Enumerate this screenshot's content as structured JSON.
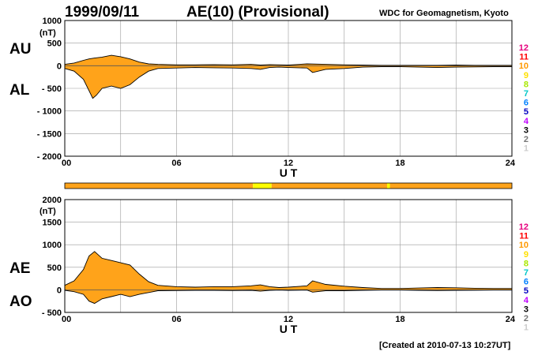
{
  "header": {
    "date": "1999/09/11",
    "title": "AE(10) (Provisional)",
    "source": "WDC for Geomagnetism, Kyoto"
  },
  "footer": {
    "created": "[Created at 2010-07-13 10:27UT]"
  },
  "colors": {
    "fill": "#ffa31a",
    "grid": "#9a9a9a",
    "bar_main": "#ffa31a",
    "bar_highlight": "#ffff00"
  },
  "legend": [
    {
      "label": "12",
      "color": "#e6007e"
    },
    {
      "label": "11",
      "color": "#ff0000"
    },
    {
      "label": "10",
      "color": "#ff9900"
    },
    {
      "label": "9",
      "color": "#ffe000"
    },
    {
      "label": "8",
      "color": "#a8e800"
    },
    {
      "label": "7",
      "color": "#00c8c8"
    },
    {
      "label": "6",
      "color": "#0080ff"
    },
    {
      "label": "5",
      "color": "#0000c0"
    },
    {
      "label": "4",
      "color": "#c000ff"
    },
    {
      "label": "3",
      "color": "#000000"
    },
    {
      "label": "2",
      "color": "#777777"
    },
    {
      "label": "1",
      "color": "#cccccc"
    }
  ],
  "station_bar": {
    "segments": [
      {
        "start": 0,
        "end": 10.1,
        "count": "10"
      },
      {
        "start": 10.1,
        "end": 11.1,
        "count": "9"
      },
      {
        "start": 11.1,
        "end": 17.3,
        "count": "10"
      },
      {
        "start": 17.3,
        "end": 17.45,
        "count": "9"
      },
      {
        "start": 17.45,
        "end": 24,
        "count": "10"
      }
    ]
  },
  "chart_data": [
    {
      "type": "area",
      "upper_label": "AU",
      "lower_label": "AL",
      "unit": "(nT)",
      "xlabel": "U T",
      "xlim": [
        0,
        24
      ],
      "ylim": [
        -2000,
        1000
      ],
      "xticks": [
        "00",
        "06",
        "12",
        "18",
        "24"
      ],
      "yticks": [
        "1000",
        "500",
        "0",
        "- 500",
        "- 1000",
        "- 1500",
        "- 2000"
      ],
      "series": [
        {
          "name": "AU",
          "x": [
            0,
            0.5,
            1,
            1.3,
            1.6,
            2,
            2.5,
            3,
            3.5,
            4,
            4.5,
            5,
            6,
            7,
            8,
            9,
            10,
            10.5,
            11,
            11.5,
            12,
            13,
            14,
            15,
            16,
            17,
            18,
            19,
            20,
            21,
            22,
            23,
            24
          ],
          "values": [
            30,
            60,
            120,
            150,
            170,
            190,
            230,
            200,
            150,
            80,
            40,
            30,
            20,
            20,
            25,
            20,
            30,
            15,
            25,
            20,
            15,
            40,
            30,
            20,
            15,
            10,
            10,
            10,
            10,
            15,
            10,
            10,
            10
          ]
        },
        {
          "name": "AL",
          "x": [
            0,
            0.5,
            1,
            1.3,
            1.5,
            1.7,
            2,
            2.5,
            3,
            3.5,
            4,
            4.5,
            5,
            6,
            7,
            8,
            9,
            10,
            10.5,
            11,
            11.5,
            12,
            13,
            13.3,
            14,
            15,
            16,
            17,
            18,
            19,
            20,
            21,
            22,
            23,
            24
          ],
          "values": [
            -60,
            -120,
            -300,
            -550,
            -720,
            -650,
            -500,
            -450,
            -500,
            -420,
            -250,
            -120,
            -60,
            -50,
            -40,
            -45,
            -50,
            -60,
            -80,
            -40,
            -30,
            -40,
            -50,
            -150,
            -80,
            -60,
            -30,
            -20,
            -20,
            -30,
            -40,
            -30,
            -25,
            -20,
            -20
          ]
        }
      ]
    },
    {
      "type": "area",
      "upper_label": "AE",
      "lower_label": "AO",
      "unit": "(nT)",
      "xlabel": "U T",
      "xlim": [
        0,
        24
      ],
      "ylim": [
        -500,
        2000
      ],
      "xticks": [
        "00",
        "06",
        "12",
        "18",
        "24"
      ],
      "yticks": [
        "2000",
        "1500",
        "1000",
        "500",
        "0",
        "- 500"
      ],
      "series": [
        {
          "name": "AE",
          "x": [
            0,
            0.5,
            1,
            1.3,
            1.6,
            2,
            2.5,
            3,
            3.5,
            4,
            4.5,
            5,
            6,
            7,
            8,
            9,
            10,
            10.5,
            11,
            11.5,
            12,
            13,
            13.3,
            14,
            15,
            16,
            17,
            18,
            19,
            20,
            21,
            22,
            23,
            24
          ],
          "values": [
            100,
            200,
            450,
            750,
            850,
            700,
            650,
            600,
            550,
            350,
            180,
            100,
            70,
            60,
            70,
            70,
            90,
            110,
            70,
            50,
            60,
            90,
            200,
            120,
            80,
            50,
            30,
            30,
            40,
            50,
            45,
            35,
            30,
            30
          ]
        },
        {
          "name": "AO",
          "x": [
            0,
            0.5,
            1,
            1.3,
            1.6,
            2,
            2.5,
            3,
            3.5,
            4,
            4.5,
            5,
            6,
            7,
            8,
            9,
            10,
            10.5,
            11,
            11.5,
            12,
            13,
            13.3,
            14,
            15,
            16,
            17,
            18,
            19,
            20,
            21,
            22,
            23,
            24
          ],
          "values": [
            -10,
            -40,
            -100,
            -250,
            -300,
            -200,
            -150,
            -100,
            -150,
            -100,
            -60,
            -20,
            -15,
            -10,
            -10,
            -15,
            -10,
            -30,
            -10,
            -5,
            -10,
            -5,
            -50,
            -20,
            -20,
            -10,
            -5,
            -5,
            -10,
            -15,
            -10,
            -8,
            -5,
            -5
          ]
        }
      ]
    }
  ]
}
